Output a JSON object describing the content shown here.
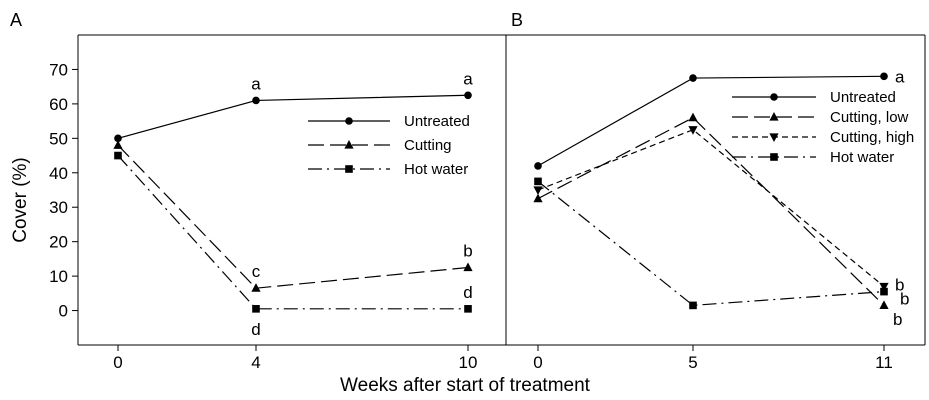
{
  "figure": {
    "ylabel": "Cover (%)",
    "xlabel": "Weeks after start of treatment"
  },
  "chart_data": [
    {
      "panel": "A",
      "type": "line",
      "x": [
        0,
        4,
        10
      ],
      "xticks": [
        "0",
        "4",
        "10"
      ],
      "ylim": [
        -10,
        80
      ],
      "yticks": [
        0,
        10,
        20,
        30,
        40,
        50,
        60,
        70
      ],
      "grid": false,
      "legend_position": "right, below top",
      "series": [
        {
          "name": "Untreated",
          "marker": "circle",
          "dash": "solid",
          "values": [
            50,
            61,
            62.5
          ]
        },
        {
          "name": "Cutting",
          "marker": "triangle-up",
          "dash": "long-dash",
          "values": [
            48,
            6.5,
            12.5
          ]
        },
        {
          "name": "Hot water",
          "marker": "square",
          "dash": "dash-dot",
          "values": [
            45,
            0.5,
            0.5
          ]
        }
      ],
      "annotations": [
        {
          "text": "a",
          "x": 4,
          "y": 61,
          "side": "above"
        },
        {
          "text": "a",
          "x": 10,
          "y": 62.5,
          "side": "above"
        },
        {
          "text": "c",
          "x": 4,
          "y": 6.5,
          "side": "above"
        },
        {
          "text": "b",
          "x": 10,
          "y": 12.5,
          "side": "above"
        },
        {
          "text": "d",
          "x": 4,
          "y": 0.5,
          "side": "below"
        },
        {
          "text": "d",
          "x": 10,
          "y": 0.5,
          "side": "above"
        }
      ]
    },
    {
      "panel": "B",
      "type": "line",
      "x": [
        0,
        5,
        11
      ],
      "xticks": [
        "0",
        "5",
        "11"
      ],
      "ylim": [
        -10,
        80
      ],
      "grid": false,
      "legend_position": "top-right",
      "series": [
        {
          "name": "Untreated",
          "marker": "circle",
          "dash": "solid",
          "values": [
            42,
            67.5,
            68
          ]
        },
        {
          "name": "Cutting, low",
          "marker": "triangle-up",
          "dash": "long-dash",
          "values": [
            32.5,
            56,
            1.5
          ]
        },
        {
          "name": "Cutting, high",
          "marker": "triangle-down",
          "dash": "short-dash",
          "values": [
            35,
            52.5,
            7
          ]
        },
        {
          "name": "Hot water",
          "marker": "square",
          "dash": "dash-dot",
          "values": [
            37.5,
            1.5,
            5.5
          ]
        }
      ],
      "annotations": [
        {
          "text": "a",
          "x": 11,
          "y": 68,
          "side": "right"
        },
        {
          "text": "b",
          "x": 11,
          "y": 7.5,
          "side": "right"
        },
        {
          "text": "b",
          "x": 11,
          "y": 3.5,
          "side": "right-far"
        },
        {
          "text": "b",
          "x": 11,
          "y": 0.5,
          "side": "below-right"
        }
      ]
    }
  ]
}
